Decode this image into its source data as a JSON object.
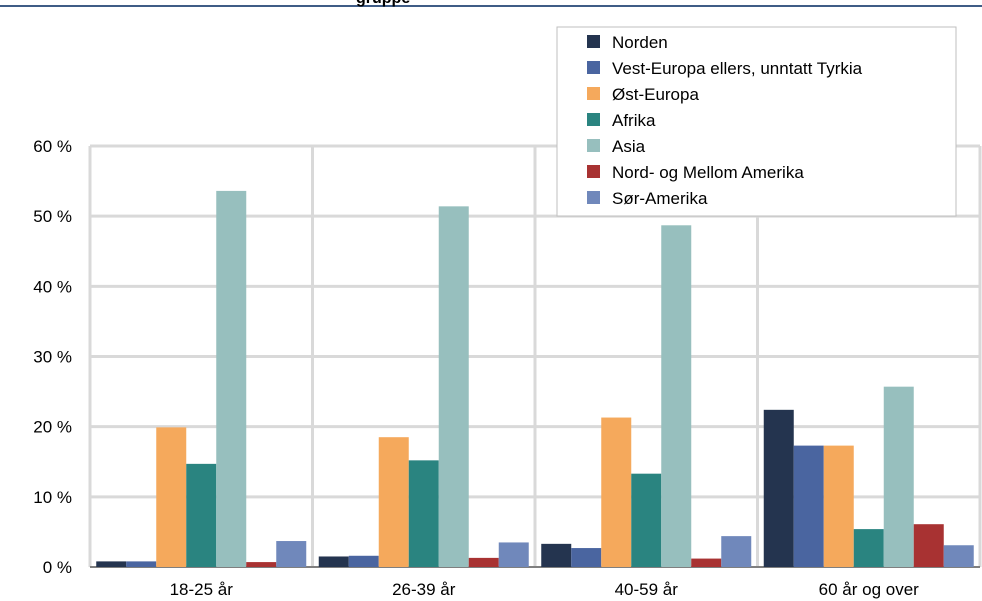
{
  "chart_data": {
    "type": "bar",
    "title_fragment": "gruppe",
    "categories": [
      "18-25 år",
      "26-39 år",
      "40-59 år",
      "60 år og over"
    ],
    "ylim": [
      0,
      60
    ],
    "yticks": [
      0,
      10,
      20,
      30,
      40,
      50,
      60
    ],
    "ytick_labels": [
      "0 %",
      "10 %",
      "20 %",
      "30 %",
      "40 %",
      "50 %",
      "60 %"
    ],
    "grid": true,
    "legend_position": "top-right",
    "series": [
      {
        "name": "Norden",
        "color": "#24344f",
        "values": [
          0.8,
          1.5,
          3.3,
          22.4
        ]
      },
      {
        "name": "Vest-Europa ellers, unntatt Tyrkia",
        "color": "#4a65a0",
        "values": [
          0.8,
          1.6,
          2.7,
          17.3
        ]
      },
      {
        "name": "Øst-Europa",
        "color": "#f5a95c",
        "values": [
          19.9,
          18.5,
          21.3,
          17.3
        ]
      },
      {
        "name": "Afrika",
        "color": "#2a8480",
        "values": [
          14.7,
          15.2,
          13.3,
          5.4
        ]
      },
      {
        "name": "Asia",
        "color": "#97bfbe",
        "values": [
          53.6,
          51.4,
          48.7,
          25.7
        ]
      },
      {
        "name": "Nord- og Mellom Amerika",
        "color": "#a83232",
        "values": [
          0.7,
          1.3,
          1.2,
          6.1
        ]
      },
      {
        "name": "Sør-Amerika",
        "color": "#7088bb",
        "values": [
          3.7,
          3.5,
          4.4,
          3.1
        ]
      }
    ]
  }
}
